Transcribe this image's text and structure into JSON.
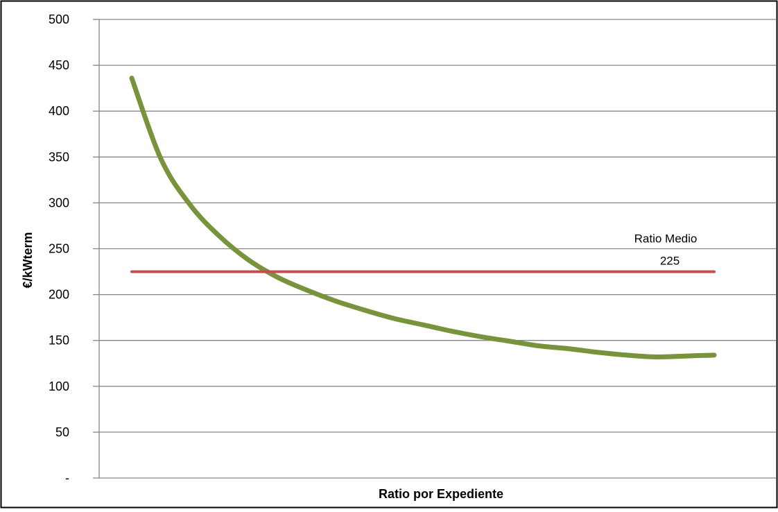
{
  "chart_data": {
    "type": "line",
    "title": "",
    "xlabel": "Ratio por Expediente",
    "ylabel": "€/kWterm",
    "ylim": [
      0,
      500
    ],
    "yticks": [
      {
        "value": 0,
        "label": "-"
      },
      {
        "value": 50,
        "label": "50"
      },
      {
        "value": 100,
        "label": "100"
      },
      {
        "value": 150,
        "label": "150"
      },
      {
        "value": 200,
        "label": "200"
      },
      {
        "value": 250,
        "label": "250"
      },
      {
        "value": 300,
        "label": "300"
      },
      {
        "value": 350,
        "label": "350"
      },
      {
        "value": 400,
        "label": "400"
      },
      {
        "value": 450,
        "label": "450"
      },
      {
        "value": 500,
        "label": "500"
      }
    ],
    "grid": "horizontal",
    "legend": "none",
    "series": [
      {
        "color": "#77933c",
        "x": [
          0,
          0.05,
          0.1,
          0.15,
          0.2,
          0.25,
          0.3,
          0.35,
          0.4,
          0.45,
          0.5,
          0.55,
          0.6,
          0.65,
          0.7,
          0.75,
          0.8,
          0.85,
          0.9,
          0.95,
          1
        ],
        "values": [
          436,
          348,
          298,
          264,
          238,
          219,
          205,
          193,
          183,
          174,
          167,
          160,
          154,
          149,
          144,
          141,
          137,
          134,
          132,
          133,
          134
        ]
      },
      {
        "color": "#c0504d",
        "x": [
          0,
          1
        ],
        "values": [
          225,
          225
        ]
      }
    ],
    "annotations": [
      {
        "line1": "Ratio Medio",
        "line2": "225",
        "value": 225
      }
    ]
  }
}
